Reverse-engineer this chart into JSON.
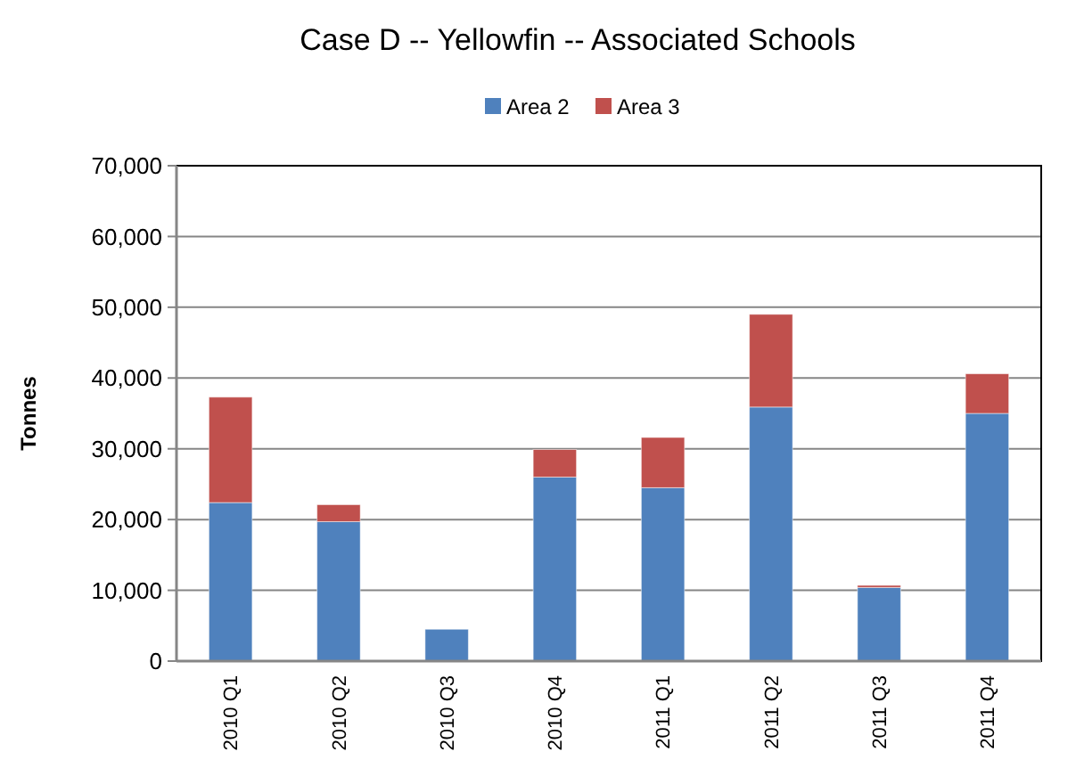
{
  "chart_data": {
    "type": "bar",
    "title": "Case D -- Yellowfin -- Associated Schools",
    "ylabel": "Tonnes",
    "categories": [
      "2010 Q1",
      "2010 Q2",
      "2010 Q3",
      "2010 Q4",
      "2011 Q1",
      "2011 Q2",
      "2011 Q3",
      "2011 Q4"
    ],
    "series": [
      {
        "name": "Area 2",
        "color": "#4f81bd",
        "values": [
          22400,
          19700,
          4500,
          26000,
          24500,
          35900,
          10400,
          35000
        ]
      },
      {
        "name": "Area 3",
        "color": "#c0504d",
        "values": [
          14900,
          2400,
          0,
          3900,
          7100,
          13100,
          300,
          5600
        ]
      }
    ],
    "stacked": true,
    "ylim": [
      0,
      70000
    ],
    "yticks": [
      {
        "value": 0,
        "label": "0"
      },
      {
        "value": 10000,
        "label": "10,000"
      },
      {
        "value": 20000,
        "label": "20,000"
      },
      {
        "value": 30000,
        "label": "30,000"
      },
      {
        "value": 40000,
        "label": "40,000"
      },
      {
        "value": 50000,
        "label": "50,000"
      },
      {
        "value": 60000,
        "label": "60,000"
      },
      {
        "value": 70000,
        "label": "70,000"
      }
    ],
    "grid": "y",
    "legend": "top"
  }
}
